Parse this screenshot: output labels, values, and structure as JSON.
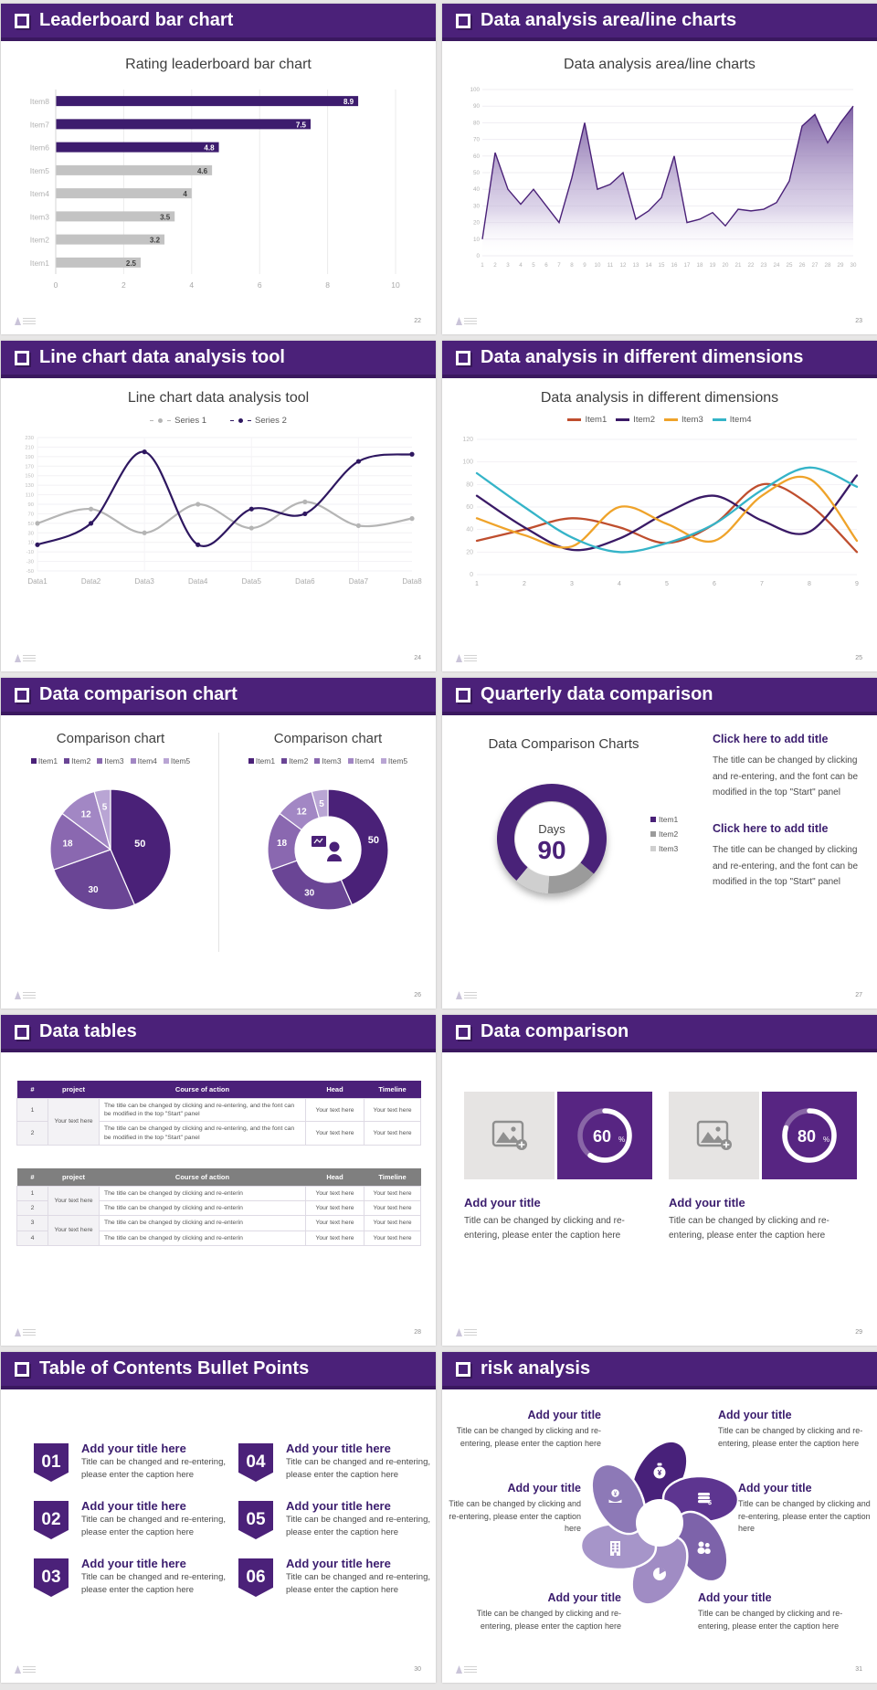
{
  "colors": {
    "accent": "#4b2179",
    "accent_dark": "#3a185f",
    "bar_purple": "#3d1c6e",
    "bar_gray": "#c3c3c3",
    "card_purple": "#572582",
    "title_text": "#3b1d6e",
    "body_text": "#4a4a4a"
  },
  "slides": {
    "s22": {
      "header": "Leaderboard bar chart",
      "page": "22"
    },
    "s23": {
      "header": "Data analysis area/line charts",
      "page": "23"
    },
    "s24": {
      "header": "Line chart data analysis tool",
      "page": "24"
    },
    "s25": {
      "header": "Data analysis in different dimensions",
      "page": "25"
    },
    "s26": {
      "header": "Data comparison chart",
      "page": "26"
    },
    "s27": {
      "header": "Quarterly data comparison",
      "page": "27",
      "blocks": [
        {
          "title": "Click here to add title",
          "body": "The title can be changed by clicking and re-entering, and the font can be modified in the top \"Start\" panel"
        },
        {
          "title": "Click here to add title",
          "body": "The title can be changed by clicking and re-entering, and the font can be modified in the top \"Start\" panel"
        }
      ]
    },
    "s28": {
      "header": "Data tables",
      "page": "28",
      "table1": {
        "headers": [
          "#",
          "project",
          "Course of action",
          "Head",
          "Timeline"
        ],
        "project": "Your text here",
        "rows": [
          {
            "num": "1",
            "course": "The title can be changed by clicking and re-entering, and the font can be modified in the top \"Start\" panel",
            "head": "Your text here",
            "timeline": "Your text here"
          },
          {
            "num": "2",
            "course": "The title can be changed by clicking and re-entering, and the font can be modified in the top \"Start\" panel",
            "head": "Your text here",
            "timeline": "Your text here"
          }
        ]
      },
      "table2": {
        "headers": [
          "#",
          "project",
          "Course of action",
          "Head",
          "Timeline"
        ],
        "project1": "Your text here",
        "project2": "Your text here",
        "rows": [
          {
            "num": "1",
            "course": "The title can be changed by clicking and re-enterin",
            "head": "Your text here",
            "timeline": "Your text here"
          },
          {
            "num": "2",
            "course": "The title can be changed by clicking and re-enterin",
            "head": "Your text here",
            "timeline": "Your text here"
          },
          {
            "num": "3",
            "course": "The title can be changed by clicking and re-enterin",
            "head": "Your text here",
            "timeline": "Your text here"
          },
          {
            "num": "4",
            "course": "The title can be changed by clicking and re-enterin",
            "head": "Your text here",
            "timeline": "Your text here"
          }
        ]
      }
    },
    "s29": {
      "header": "Data comparison",
      "page": "29",
      "cards": [
        {
          "title": "Add your title",
          "caption": "Title can be changed by clicking and re-entering, please enter the caption here"
        },
        {
          "title": "Add your title",
          "caption": "Title can be changed by clicking and re-entering, please enter the caption here"
        }
      ]
    },
    "s30": {
      "header": "Table of Contents Bullet Points",
      "page": "30",
      "items": [
        {
          "num": "01",
          "title": "Add your title here",
          "caption": "Title can be changed and re-entering, please enter the caption here"
        },
        {
          "num": "02",
          "title": "Add your title here",
          "caption": "Title can be changed and re-entering, please enter the caption here"
        },
        {
          "num": "03",
          "title": "Add your title here",
          "caption": "Title can be changed and re-entering, please enter the caption here"
        },
        {
          "num": "04",
          "title": "Add your title here",
          "caption": "Title can be changed and re-entering, please enter the caption here"
        },
        {
          "num": "05",
          "title": "Add your title here",
          "caption": "Title can be changed and re-entering, please enter the caption here"
        },
        {
          "num": "06",
          "title": "Add your title here",
          "caption": "Title can be changed and re-entering, please enter the caption here"
        }
      ]
    },
    "s31": {
      "header": "risk analysis",
      "page": "31",
      "items": [
        {
          "title": "Add your title",
          "caption": "Title can be changed by clicking and re-entering, please enter the caption here"
        },
        {
          "title": "Add your title",
          "caption": "Title can be changed by clicking and re-entering, please enter the caption here"
        },
        {
          "title": "Add your title",
          "caption": "Title can be changed by clicking and re-entering, please enter the caption here"
        },
        {
          "title": "Add your title",
          "caption": "Title can be changed by clicking and re-entering, please enter the caption here"
        },
        {
          "title": "Add your title",
          "caption": "Title can be changed by clicking and re-entering, please enter the caption here"
        },
        {
          "title": "Add your title",
          "caption": "Title can be changed by clicking and re-entering, please enter the caption here"
        }
      ]
    }
  },
  "chart_data": [
    {
      "id": "leaderboard",
      "type": "bar",
      "orientation": "horizontal",
      "title": "Rating leaderboard bar chart",
      "categories": [
        "Item1",
        "Item2",
        "Item3",
        "Item4",
        "Item5",
        "Item6",
        "Item7",
        "Item8"
      ],
      "values": [
        2.5,
        3.2,
        3.5,
        4,
        4.6,
        4.8,
        7.5,
        8.9
      ],
      "value_labels": [
        "2.5",
        "3.2",
        "3.5",
        "4",
        "4.6",
        "4.8",
        "7.5",
        "8.9"
      ],
      "highlight": [
        false,
        false,
        false,
        false,
        false,
        true,
        true,
        true
      ],
      "xlim": [
        0,
        10
      ],
      "xticks": [
        "0",
        "2",
        "4",
        "6",
        "8",
        "10"
      ],
      "bar_color_highlight": "#3d1c6e",
      "bar_color_normal": "#c3c3c3"
    },
    {
      "id": "area",
      "type": "area",
      "title": "Data analysis area/line charts",
      "x": [
        "1",
        "2",
        "3",
        "4",
        "5",
        "6",
        "7",
        "8",
        "9",
        "10",
        "11",
        "12",
        "13",
        "14",
        "15",
        "16",
        "17",
        "18",
        "19",
        "20",
        "21",
        "22",
        "23",
        "24",
        "25",
        "26",
        "27",
        "28",
        "29",
        "30"
      ],
      "values": [
        10,
        62,
        40,
        31,
        40,
        30,
        20,
        47,
        80,
        40,
        43,
        50,
        22,
        27,
        35,
        60,
        20,
        22,
        26,
        18,
        28,
        27,
        28,
        32,
        45,
        78,
        85,
        68,
        80,
        90
      ],
      "ylim": [
        0,
        100
      ],
      "ytick_step": 10,
      "line_color": "#4a2178"
    },
    {
      "id": "line2",
      "type": "line",
      "title": "Line chart data analysis tool",
      "categories": [
        "Data1",
        "Data2",
        "Data3",
        "Data4",
        "Data5",
        "Data6",
        "Data7",
        "Data8"
      ],
      "series": [
        {
          "name": "Series 1",
          "color": "#b5b5b5",
          "values": [
            50,
            80,
            30,
            90,
            40,
            95,
            45,
            60
          ]
        },
        {
          "name": "Series 2",
          "color": "#2e1760",
          "values": [
            5,
            50,
            200,
            5,
            80,
            70,
            180,
            195
          ]
        }
      ],
      "ylim": [
        -50,
        230
      ],
      "ytick_step": 20,
      "markers": true
    },
    {
      "id": "line4",
      "type": "line",
      "title": "Data analysis in different dimensions",
      "categories": [
        "1",
        "2",
        "3",
        "4",
        "5",
        "6",
        "7",
        "8",
        "9"
      ],
      "series": [
        {
          "name": "Item1",
          "color": "#bf4e2e",
          "values": [
            30,
            40,
            50,
            42,
            28,
            45,
            80,
            62,
            20
          ]
        },
        {
          "name": "Item2",
          "color": "#3a1a66",
          "values": [
            70,
            42,
            22,
            32,
            55,
            70,
            48,
            38,
            88
          ]
        },
        {
          "name": "Item3",
          "color": "#efa32a",
          "values": [
            50,
            35,
            25,
            60,
            45,
            30,
            70,
            85,
            30
          ]
        },
        {
          "name": "Item4",
          "color": "#35b4c8",
          "values": [
            90,
            60,
            33,
            20,
            28,
            45,
            75,
            95,
            78
          ]
        }
      ],
      "ylim": [
        0,
        120
      ],
      "ytick_step": 20,
      "markers": false
    },
    {
      "id": "pie",
      "type": "pie",
      "title": "Comparison chart",
      "legend": [
        "Item1",
        "Item2",
        "Item3",
        "Item4",
        "Item5"
      ],
      "values": [
        50,
        30,
        18,
        12,
        5
      ],
      "value_labels": [
        "50",
        "30",
        "18",
        "12",
        "5"
      ],
      "colors": [
        "#4a2178",
        "#6a4595",
        "#8a68b0",
        "#a287c4",
        "#b9a5d4"
      ]
    },
    {
      "id": "days",
      "type": "donut",
      "title": "Data Comparison Charts",
      "center_label": "Days",
      "center_value": "90",
      "segments": [
        {
          "name": "Item1",
          "value": 75,
          "color": "#4a2178"
        },
        {
          "name": "Item2",
          "value": 15,
          "color": "#9b9b9b"
        },
        {
          "name": "Item3",
          "value": 10,
          "color": "#cfcfcf"
        }
      ],
      "start_angle": 130
    },
    {
      "id": "progress",
      "type": "progress",
      "values": [
        60,
        80
      ],
      "labels": [
        "60",
        "80"
      ],
      "unit": "%"
    }
  ]
}
